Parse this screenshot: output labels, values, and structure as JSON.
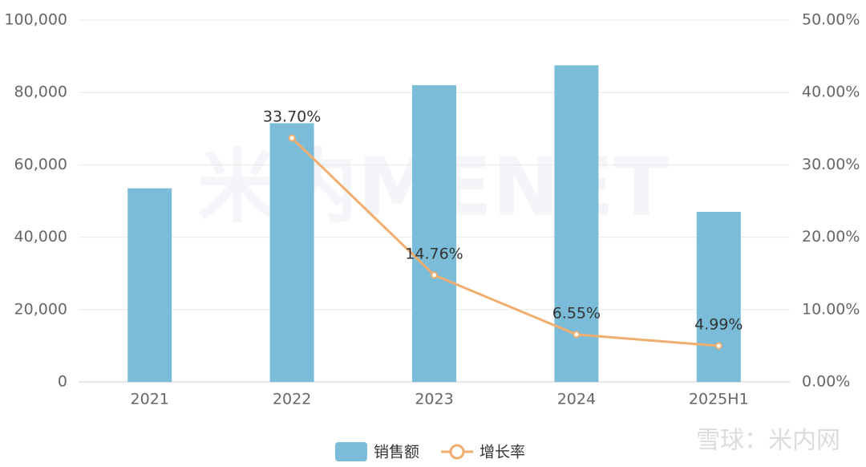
{
  "chart_data": {
    "type": "bar",
    "categories": [
      "2021",
      "2022",
      "2023",
      "2024",
      "2025H1"
    ],
    "series": [
      {
        "name": "销售额",
        "color": "#7bbdd9",
        "type": "bar",
        "values": [
          53500,
          71500,
          82000,
          87500,
          47000
        ]
      },
      {
        "name": "增长率",
        "color": "#f0ad6e",
        "type": "line",
        "axis": "y2",
        "values": [
          null,
          33.7,
          14.76,
          6.55,
          4.99
        ],
        "value_labels": [
          null,
          "33.70%",
          "14.76%",
          "6.55%",
          "4.99%"
        ]
      }
    ],
    "ylim": [
      0,
      100000
    ],
    "yticks": [
      0,
      {
        "value": 20000,
        "label": "20,000"
      },
      {
        "value": 40000,
        "label": "40,000"
      },
      {
        "value": 60000,
        "label": "60,000"
      },
      {
        "value": 80000,
        "label": "80,000"
      },
      {
        "value": 100000,
        "label": "100,000"
      }
    ],
    "y2lim": [
      0,
      50
    ],
    "y2ticks": [
      {
        "value": 0,
        "label": "0.00%"
      },
      {
        "value": 10,
        "label": "10.00%"
      },
      {
        "value": 20,
        "label": "20.00%"
      },
      {
        "value": 30,
        "label": "30.00%"
      },
      {
        "value": 40,
        "label": "40.00%"
      },
      {
        "value": 50,
        "label": "50.00%"
      }
    ],
    "grid": true,
    "legend": "bottom",
    "watermark": "米内MENET",
    "source_watermark": "雪球：米内网"
  }
}
